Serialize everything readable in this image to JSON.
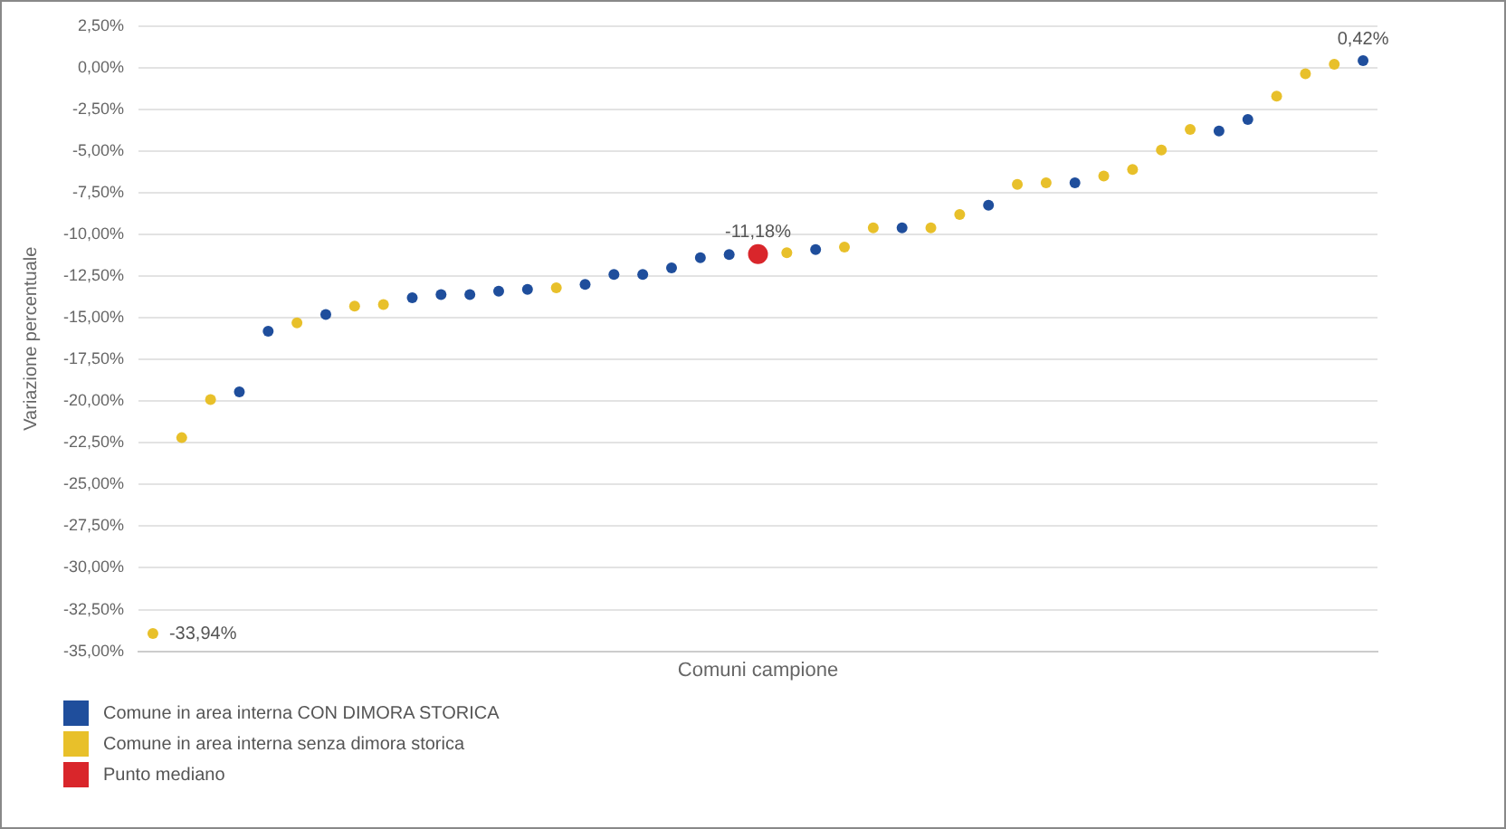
{
  "chart_data": {
    "type": "scatter",
    "xlabel": "Comuni campione",
    "ylabel": "Variazione percentuale",
    "categories": [
      null,
      null,
      null,
      null,
      null,
      null,
      null,
      null,
      null,
      null,
      null,
      null,
      null,
      null,
      null,
      null,
      null,
      null,
      null,
      null,
      null,
      null,
      null,
      null,
      null,
      null,
      null,
      null,
      null,
      null,
      null,
      null,
      null,
      null,
      null,
      null,
      null,
      null,
      null,
      null,
      null,
      null,
      null
    ],
    "series": [
      {
        "name": "Comune in area interna CON DIMORA STORICA",
        "color": "#1f4e9c",
        "values": [
          null,
          null,
          null,
          -19.44,
          -15.8,
          null,
          -14.8,
          null,
          null,
          -13.8,
          -13.6,
          -13.6,
          -13.4,
          -13.3,
          null,
          -13.0,
          -12.4,
          -12.4,
          -12.0,
          -11.4,
          -11.2,
          null,
          null,
          -10.9,
          null,
          null,
          -9.6,
          null,
          null,
          -8.24,
          null,
          null,
          -6.9,
          null,
          null,
          null,
          null,
          -3.8,
          -3.1,
          null,
          null,
          null,
          0.42
        ],
        "value_labels": [
          null,
          null,
          null,
          null,
          null,
          null,
          null,
          null,
          null,
          null,
          null,
          null,
          null,
          null,
          null,
          null,
          null,
          null,
          null,
          null,
          null,
          null,
          null,
          null,
          null,
          null,
          null,
          null,
          null,
          null,
          null,
          null,
          null,
          null,
          null,
          null,
          null,
          null,
          null,
          null,
          null,
          null,
          "0,42%"
        ]
      },
      {
        "name": "Comune in area interna senza dimora storica",
        "color": "#e8c02a",
        "values": [
          -33.94,
          -22.19,
          -19.9,
          null,
          null,
          -15.3,
          null,
          -14.3,
          -14.2,
          null,
          null,
          null,
          null,
          null,
          -13.2,
          null,
          null,
          null,
          null,
          null,
          null,
          null,
          -11.1,
          null,
          -10.76,
          -9.6,
          null,
          -9.6,
          -8.8,
          null,
          -7.0,
          -6.9,
          null,
          -6.5,
          -6.1,
          -4.93,
          -3.7,
          null,
          null,
          -1.7,
          -0.36,
          0.21,
          null
        ],
        "value_labels": [
          "-33,94%",
          null,
          null,
          null,
          null,
          null,
          null,
          null,
          null,
          null,
          null,
          null,
          null,
          null,
          null,
          null,
          null,
          null,
          null,
          null,
          null,
          null,
          null,
          null,
          null,
          null,
          null,
          null,
          null,
          null,
          null,
          null,
          null,
          null,
          null,
          null,
          null,
          null,
          null,
          null,
          null,
          null,
          null
        ]
      },
      {
        "name": "Punto mediano",
        "color": "#d9262b",
        "values": [
          null,
          null,
          null,
          null,
          null,
          null,
          null,
          null,
          null,
          null,
          null,
          null,
          null,
          null,
          null,
          null,
          null,
          null,
          null,
          null,
          null,
          -11.18,
          null,
          null,
          null,
          null,
          null,
          null,
          null,
          null,
          null,
          null,
          null,
          null,
          null,
          null,
          null,
          null,
          null,
          null,
          null,
          null,
          null
        ],
        "value_labels": [
          null,
          null,
          null,
          null,
          null,
          null,
          null,
          null,
          null,
          null,
          null,
          null,
          null,
          null,
          null,
          null,
          null,
          null,
          null,
          null,
          null,
          "-11,18%",
          null,
          null,
          null,
          null,
          null,
          null,
          null,
          null,
          null,
          null,
          null,
          null,
          null,
          null,
          null,
          null,
          null,
          null,
          null,
          null,
          null
        ]
      }
    ],
    "ylim": [
      -35,
      2.5
    ],
    "yticks": [
      {
        "value": 2.5,
        "label": "2,50%"
      },
      {
        "value": 0,
        "label": "0,00%"
      },
      {
        "value": -2.5,
        "label": "-2,50%"
      },
      {
        "value": -5,
        "label": "-5,00%"
      },
      {
        "value": -7.5,
        "label": "-7,50%"
      },
      {
        "value": -10,
        "label": "-10,00%"
      },
      {
        "value": -12.5,
        "label": "-12,50%"
      },
      {
        "value": -15,
        "label": "-15,00%"
      },
      {
        "value": -17.5,
        "label": "-17,50%"
      },
      {
        "value": -20,
        "label": "-20,00%"
      },
      {
        "value": -22.5,
        "label": "-22,50%"
      },
      {
        "value": -25,
        "label": "-25,00%"
      },
      {
        "value": -27.5,
        "label": "-27,50%"
      },
      {
        "value": -30,
        "label": "-30,00%"
      },
      {
        "value": -32.5,
        "label": "-32,50%"
      },
      {
        "value": -35,
        "label": "-35,00%"
      }
    ],
    "grid": "y",
    "legend": "bottom left",
    "marker": "circle",
    "tick_labels": "y"
  }
}
